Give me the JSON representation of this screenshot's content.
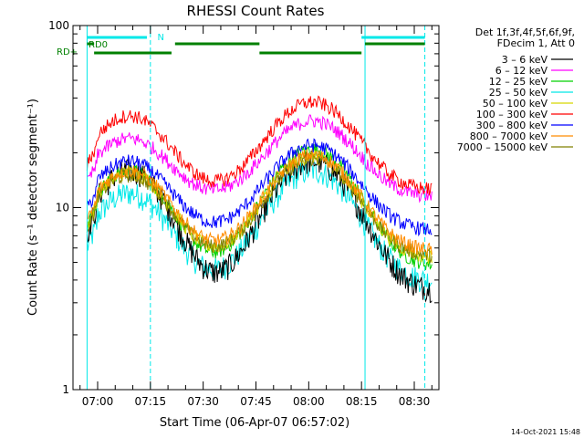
{
  "chart_data": {
    "type": "line",
    "title": "RHESSI Count Rates",
    "xlabel": "Start Time (06-Apr-07 06:57:02)",
    "ylabel": "Count Rate (s⁻¹ detector segment⁻¹)",
    "yscale": "log",
    "ylim": [
      1,
      100
    ],
    "xlim": [
      "06:53",
      "08:37"
    ],
    "x_ticks": [
      "07:00",
      "07:15",
      "07:30",
      "07:45",
      "08:00",
      "08:15",
      "08:30"
    ],
    "y_ticks": [
      "1",
      "10",
      "100"
    ],
    "legend_header": [
      "Det 1f,3f,4f,5f,6f,9f,",
      "FDecim 1, Att 0"
    ],
    "timestamp": "14-Oct-2021 15:48",
    "series": [
      {
        "name": "3 – 6 keV",
        "color": "#000000",
        "base": 3.5,
        "peak1": 16,
        "peak2": 18
      },
      {
        "name": "6 – 12 keV",
        "color": "#ff00ff",
        "base": 11.5,
        "peak1": 24,
        "peak2": 30
      },
      {
        "name": "12 – 25 keV",
        "color": "#00d000",
        "base": 4.8,
        "peak1": 16,
        "peak2": 21
      },
      {
        "name": "25 – 50 keV",
        "color": "#00e8e8",
        "base": 3.9,
        "peak1": 12,
        "peak2": 16
      },
      {
        "name": "50 – 100 keV",
        "color": "#d8d800",
        "base": 5.3,
        "peak1": 15.5,
        "peak2": 19
      },
      {
        "name": "100 – 300 keV",
        "color": "#ff0000",
        "base": 12.5,
        "peak1": 32,
        "peak2": 38
      },
      {
        "name": "300 – 800 keV",
        "color": "#0000ff",
        "base": 7.5,
        "peak1": 18,
        "peak2": 22
      },
      {
        "name": "800 – 7000 keV",
        "color": "#ff8c00",
        "base": 5.8,
        "peak1": 16,
        "peak2": 19.5
      },
      {
        "name": "7000 – 15000 keV",
        "color": "#808000",
        "base": 5.4,
        "peak1": 15,
        "peak2": 18.5
      }
    ],
    "flags": [
      {
        "label": "N",
        "color": "#00e8e8",
        "segments": [
          [
            "06:57",
            "07:14"
          ],
          [
            "08:15",
            "08:33"
          ]
        ]
      },
      {
        "label": "RD0",
        "color": "#008000",
        "segments": [
          [
            "06:57",
            "06:59"
          ],
          [
            "07:22",
            "07:46"
          ],
          [
            "08:16",
            "08:33"
          ]
        ]
      },
      {
        "label": "RD+",
        "color": "#008000",
        "segments": [
          [
            "06:59",
            "07:21"
          ],
          [
            "07:46",
            "08:15"
          ]
        ]
      }
    ],
    "vertical_markers": {
      "solid": [
        "06:57",
        "08:16"
      ],
      "dashed": [
        "07:15",
        "08:33"
      ]
    }
  }
}
